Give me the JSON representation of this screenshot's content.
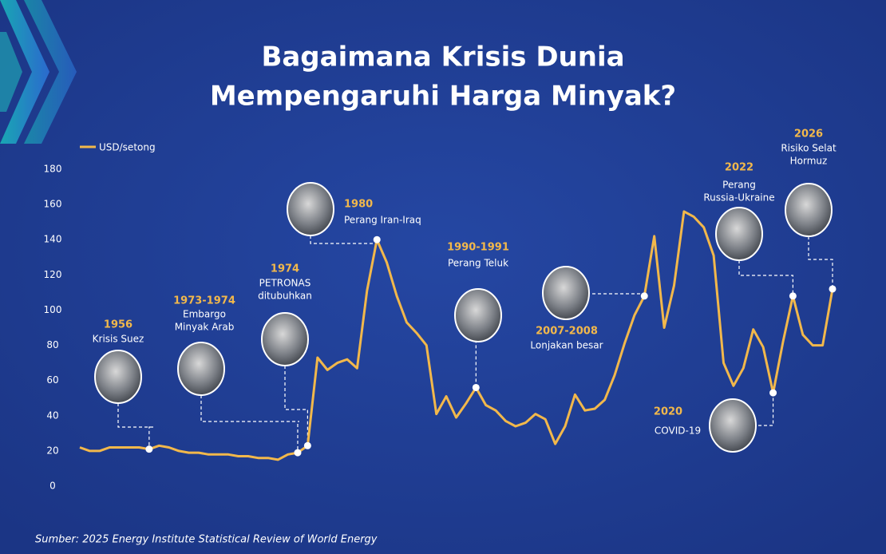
{
  "chart_data": {
    "type": "line",
    "title": [
      "Bagaimana Krisis Dunia",
      "Mempengaruhi Harga Minyak?"
    ],
    "source": "Sumber: 2025 Energy Institute Statistical Review of World Energy",
    "x": [
      1950,
      1951,
      1952,
      1953,
      1954,
      1955,
      1956,
      1957,
      1958,
      1959,
      1960,
      1961,
      1962,
      1963,
      1964,
      1965,
      1966,
      1967,
      1968,
      1969,
      1970,
      1971,
      1972,
      1973,
      1974,
      1975,
      1976,
      1977,
      1978,
      1979,
      1980,
      1981,
      1982,
      1983,
      1984,
      1985,
      1986,
      1987,
      1988,
      1989,
      1990,
      1991,
      1992,
      1993,
      1994,
      1995,
      1996,
      1997,
      1998,
      1999,
      2000,
      2001,
      2002,
      2003,
      2004,
      2005,
      2006,
      2007,
      2008,
      2009,
      2010,
      2011,
      2012,
      2013,
      2014,
      2015,
      2016,
      2017,
      2018,
      2019,
      2020,
      2021,
      2022,
      2023,
      2024,
      2025,
      2026
    ],
    "xlim": [
      1950,
      2026
    ],
    "series": [
      {
        "name": "USD/setong",
        "color": "#f2b84b",
        "values": [
          22,
          20,
          20,
          22,
          22,
          22,
          22,
          21,
          23,
          22,
          20,
          19,
          19,
          18,
          18,
          18,
          17,
          17,
          16,
          16,
          15,
          18,
          19,
          23,
          73,
          66,
          70,
          72,
          67,
          111,
          140,
          127,
          108,
          93,
          87,
          80,
          41,
          51,
          39,
          47,
          56,
          46,
          43,
          37,
          34,
          36,
          41,
          38,
          24,
          34,
          52,
          43,
          44,
          49,
          63,
          81,
          97,
          108,
          142,
          90,
          114,
          156,
          153,
          147,
          131,
          70,
          57,
          67,
          89,
          79,
          53,
          82,
          108,
          86,
          80,
          80,
          112
        ]
      }
    ],
    "ylim": [
      0,
      180
    ],
    "yticks": [
      0,
      20,
      40,
      60,
      80,
      100,
      120,
      140,
      160,
      180
    ],
    "events": [
      {
        "year": "1956",
        "label": [
          "Krisis Suez"
        ],
        "x": 1957
      },
      {
        "year": "1973-1974",
        "label": [
          "Embargo",
          "Minyak Arab"
        ],
        "x": 1972
      },
      {
        "year": "1974",
        "label": [
          "PETRONAS",
          "ditubuhkan"
        ],
        "x": 1973
      },
      {
        "year": "1980",
        "label": [
          "Perang Iran-Iraq"
        ],
        "x": 1980
      },
      {
        "year": "1990-1991",
        "label": [
          "Perang Teluk"
        ],
        "x": 1990
      },
      {
        "year": "2007-2008",
        "label": [
          "Lonjakan besar"
        ],
        "x": 2007
      },
      {
        "year": "2020",
        "label": [
          "COVID-19"
        ],
        "x": 2020
      },
      {
        "year": "2022",
        "label": [
          "Perang",
          "Russia-Ukraine"
        ],
        "x": 2022
      },
      {
        "year": "2026",
        "label": [
          "Risiko Selat",
          "Hormuz"
        ],
        "x": 2026
      }
    ]
  }
}
